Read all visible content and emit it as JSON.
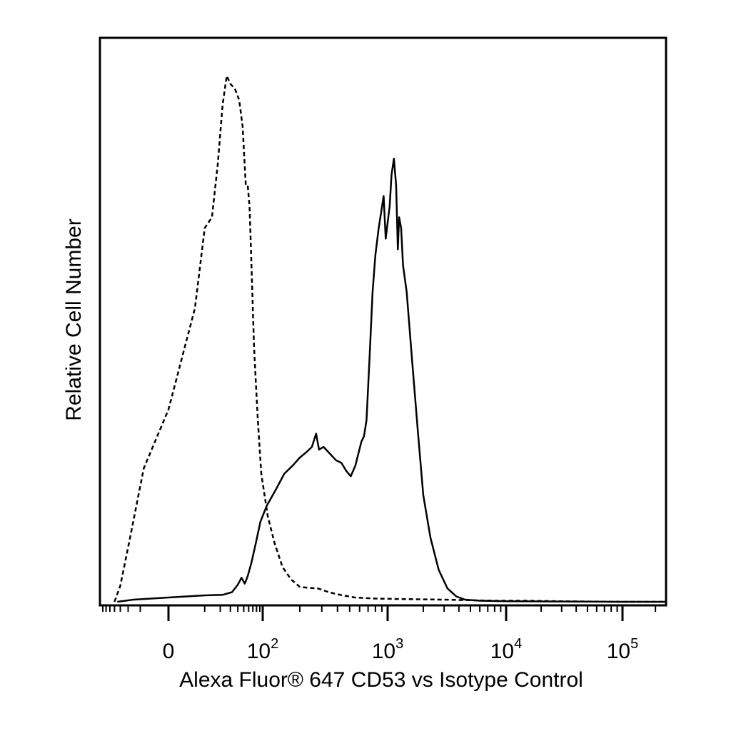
{
  "chart_data": {
    "type": "line",
    "plot_kind": "flow cytometry histogram",
    "xlabel": "Alexa Fluor® 647 CD53 vs Isotype Control",
    "ylabel": "Relative Cell Number",
    "x_scale": "biexponential (linear near 0, log above ~10^2)",
    "xlim": [
      -80,
      250000
    ],
    "ylim": [
      0,
      1.0
    ],
    "y_ticks_shown": false,
    "grid": false,
    "legend": "none",
    "x_ticks": [
      {
        "value": 0,
        "base": "0",
        "exp": ""
      },
      {
        "value": 100,
        "base": "10",
        "exp": "2"
      },
      {
        "value": 1000,
        "base": "10",
        "exp": "3"
      },
      {
        "value": 10000,
        "base": "10",
        "exp": "4"
      },
      {
        "value": 100000,
        "base": "10",
        "exp": "5"
      }
    ],
    "series": [
      {
        "style": "dashed",
        "points": [
          [
            -40,
            0.0
          ],
          [
            -30,
            0.03
          ],
          [
            -18,
            0.12
          ],
          [
            -8,
            0.25
          ],
          [
            0,
            0.36
          ],
          [
            6,
            0.55
          ],
          [
            10,
            0.7
          ],
          [
            14,
            0.72
          ],
          [
            18,
            0.82
          ],
          [
            22,
            0.93
          ],
          [
            26,
            0.985
          ],
          [
            30,
            0.97
          ],
          [
            36,
            0.96
          ],
          [
            42,
            0.94
          ],
          [
            48,
            0.89
          ],
          [
            54,
            0.78
          ],
          [
            58,
            0.78
          ],
          [
            62,
            0.74
          ],
          [
            67,
            0.62
          ],
          [
            73,
            0.48
          ],
          [
            78,
            0.41
          ],
          [
            84,
            0.34
          ],
          [
            95,
            0.24
          ],
          [
            110,
            0.16
          ],
          [
            125,
            0.11
          ],
          [
            145,
            0.065
          ],
          [
            170,
            0.042
          ],
          [
            200,
            0.028
          ],
          [
            240,
            0.026
          ],
          [
            280,
            0.025
          ],
          [
            340,
            0.018
          ],
          [
            420,
            0.013
          ],
          [
            550,
            0.008
          ],
          [
            800,
            0.006
          ],
          [
            1500,
            0.005
          ],
          [
            3000,
            0.004
          ],
          [
            5000,
            0.003
          ],
          [
            8000,
            0.002
          ],
          [
            15000,
            0.002
          ],
          [
            30000,
            0.001
          ],
          [
            100000,
            0.0
          ],
          [
            250000,
            0.0
          ]
        ]
      },
      {
        "style": "solid",
        "points": [
          [
            -35,
            0.0
          ],
          [
            -15,
            0.004
          ],
          [
            0,
            0.008
          ],
          [
            10,
            0.012
          ],
          [
            22,
            0.013
          ],
          [
            32,
            0.018
          ],
          [
            40,
            0.032
          ],
          [
            46,
            0.045
          ],
          [
            52,
            0.034
          ],
          [
            58,
            0.048
          ],
          [
            66,
            0.072
          ],
          [
            78,
            0.11
          ],
          [
            92,
            0.15
          ],
          [
            108,
            0.18
          ],
          [
            128,
            0.21
          ],
          [
            150,
            0.24
          ],
          [
            175,
            0.255
          ],
          [
            200,
            0.27
          ],
          [
            225,
            0.28
          ],
          [
            250,
            0.29
          ],
          [
            270,
            0.315
          ],
          [
            285,
            0.285
          ],
          [
            310,
            0.29
          ],
          [
            340,
            0.28
          ],
          [
            390,
            0.265
          ],
          [
            430,
            0.26
          ],
          [
            470,
            0.245
          ],
          [
            510,
            0.235
          ],
          [
            555,
            0.255
          ],
          [
            590,
            0.28
          ],
          [
            620,
            0.3
          ],
          [
            650,
            0.31
          ],
          [
            680,
            0.34
          ],
          [
            720,
            0.46
          ],
          [
            760,
            0.58
          ],
          [
            800,
            0.65
          ],
          [
            850,
            0.7
          ],
          [
            890,
            0.73
          ],
          [
            930,
            0.76
          ],
          [
            965,
            0.68
          ],
          [
            1000,
            0.71
          ],
          [
            1040,
            0.74
          ],
          [
            1080,
            0.8
          ],
          [
            1130,
            0.83
          ],
          [
            1180,
            0.78
          ],
          [
            1220,
            0.66
          ],
          [
            1250,
            0.72
          ],
          [
            1300,
            0.7
          ],
          [
            1350,
            0.63
          ],
          [
            1450,
            0.58
          ],
          [
            1600,
            0.46
          ],
          [
            1800,
            0.32
          ],
          [
            2000,
            0.2
          ],
          [
            2300,
            0.12
          ],
          [
            2700,
            0.06
          ],
          [
            3200,
            0.025
          ],
          [
            3800,
            0.01
          ],
          [
            4500,
            0.004
          ],
          [
            6000,
            0.002
          ],
          [
            10000,
            0.001
          ],
          [
            100000,
            0.0
          ],
          [
            250000,
            0.0
          ]
        ]
      }
    ]
  }
}
